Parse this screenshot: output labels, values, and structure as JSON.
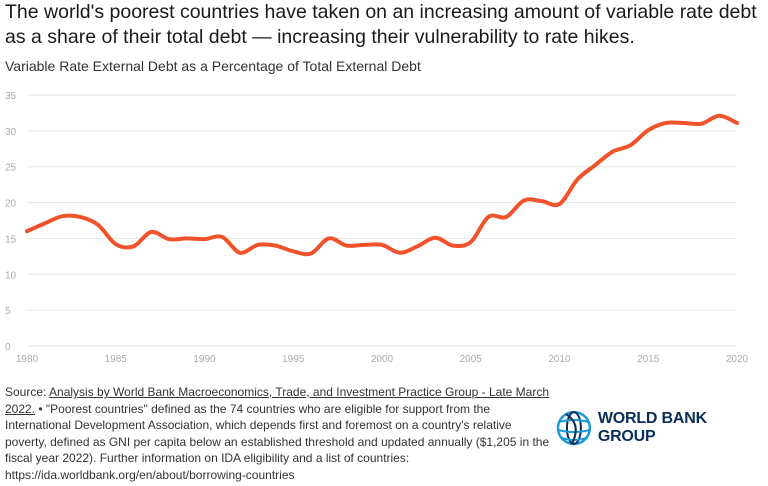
{
  "title": "The world's poorest countries have taken on an increasing amount of variable rate debt as a share of their total debt — increasing their vulnerability to rate hikes.",
  "footer": {
    "source_prefix": "Source: ",
    "source_link": "Analysis by World Bank Macroeconomics, Trade, and Investment Practice Group - Late March 2022.",
    "note": " • \"Poorest countries\" defined as the 74 countries who are eligible for support from the International Development Association, which depends first and foremost on a country's relative poverty, defined as GNI per capita below an established threshold and updated annually ($1,205 in the fiscal year 2022). Further information on IDA eligibility and a list of countries: https://ida.worldbank.org/en/about/borrowing-countries"
  },
  "logo": {
    "text": "WORLD BANK GROUP"
  },
  "colors": {
    "line": "#f0532b",
    "grid": "#e6e6e6",
    "tick": "#aaaaaa",
    "logo_blue": "#1a9ad6",
    "logo_navy": "#0b2d59"
  },
  "chart_data": {
    "type": "line",
    "title": "Variable Rate External Debt as a Percentage of Total External Debt",
    "xlabel": "",
    "ylabel": "",
    "xlim": [
      1980,
      2020
    ],
    "ylim": [
      0,
      35
    ],
    "grid": true,
    "x_ticks": [
      "1980",
      "1985",
      "1990",
      "1995",
      "2000",
      "2005",
      "2010",
      "2015",
      "2020"
    ],
    "y_ticks": [
      "0",
      "5",
      "10",
      "15",
      "20",
      "25",
      "30",
      "35"
    ],
    "x": [
      1980,
      1981,
      1982,
      1983,
      1984,
      1985,
      1986,
      1987,
      1988,
      1989,
      1990,
      1991,
      1992,
      1993,
      1994,
      1995,
      1996,
      1997,
      1998,
      1999,
      2000,
      2001,
      2002,
      2003,
      2004,
      2005,
      2006,
      2007,
      2008,
      2009,
      2010,
      2011,
      2012,
      2013,
      2014,
      2015,
      2016,
      2017,
      2018,
      2019,
      2020
    ],
    "series": [
      {
        "values": [
          16,
          17.1,
          18.1,
          18,
          16.9,
          14.2,
          13.9,
          15.9,
          14.9,
          15,
          14.9,
          15.2,
          13,
          14.1,
          14,
          13.2,
          12.9,
          15,
          14,
          14.1,
          14.1,
          13,
          13.9,
          15.1,
          14,
          14.5,
          18,
          18,
          20.3,
          20.2,
          19.8,
          23.2,
          25.2,
          27.1,
          28,
          30.1,
          31.1,
          31.1,
          31,
          32.1,
          31.1
        ]
      }
    ]
  }
}
